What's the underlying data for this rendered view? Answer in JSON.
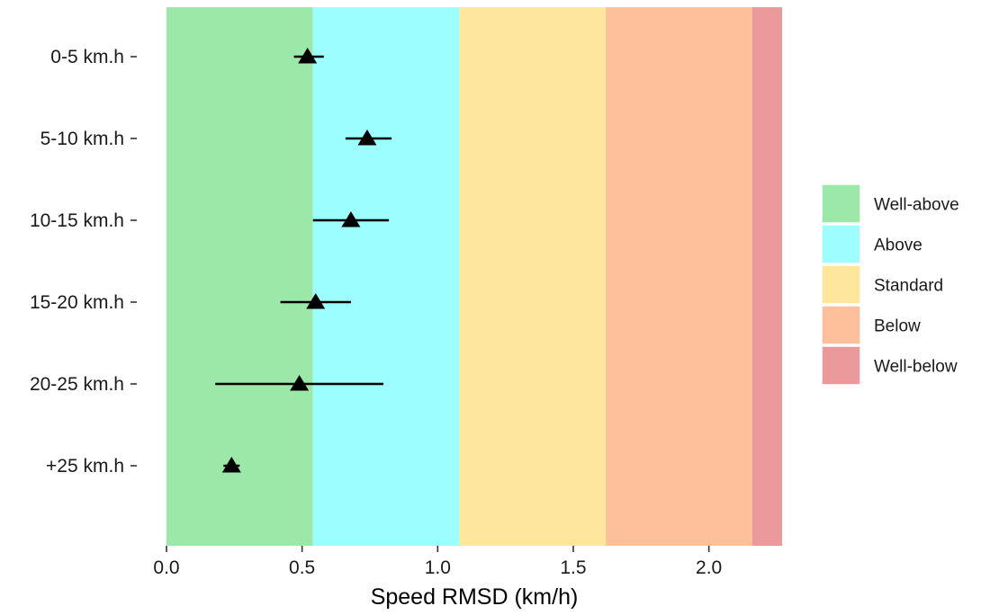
{
  "chart_data": {
    "type": "scatter",
    "xlabel": "Speed RMSD (km/h)",
    "ylabel": "",
    "xlim": [
      0,
      2.27
    ],
    "x_ticks": [
      "0.0",
      "0.5",
      "1.0",
      "1.5",
      "2.0"
    ],
    "x_tick_values": [
      0,
      0.5,
      1.0,
      1.5,
      2.0
    ],
    "categories": [
      "0-5 km.h",
      "5-10 km.h",
      "10-15 km.h",
      "15-20 km.h",
      "20-25 km.h",
      "+25 km.h"
    ],
    "points": [
      {
        "category": "0-5 km.h",
        "value": 0.52,
        "lower": 0.47,
        "upper": 0.58
      },
      {
        "category": "5-10 km.h",
        "value": 0.74,
        "lower": 0.66,
        "upper": 0.83
      },
      {
        "category": "10-15 km.h",
        "value": 0.68,
        "lower": 0.54,
        "upper": 0.82
      },
      {
        "category": "15-20 km.h",
        "value": 0.55,
        "lower": 0.42,
        "upper": 0.68
      },
      {
        "category": "20-25 km.h",
        "value": 0.49,
        "lower": 0.18,
        "upper": 0.8
      },
      {
        "category": "+25 km.h",
        "value": 0.24,
        "lower": 0.21,
        "upper": 0.27
      }
    ],
    "marker": "triangle",
    "bands": [
      {
        "name": "Well-above",
        "from": 0,
        "to": 0.54,
        "color": "#9BE8A9"
      },
      {
        "name": "Above",
        "from": 0.54,
        "to": 1.08,
        "color": "#9CFEFE"
      },
      {
        "name": "Standard",
        "from": 1.08,
        "to": 1.62,
        "color": "#FEE69C"
      },
      {
        "name": "Below",
        "from": 1.62,
        "to": 2.16,
        "color": "#FEC09B"
      },
      {
        "name": "Well-below",
        "from": 2.16,
        "to": 2.27,
        "color": "#EA9A9B"
      }
    ],
    "legend": {
      "position": "right",
      "entries": [
        "Well-above",
        "Above",
        "Standard",
        "Below",
        "Well-below"
      ]
    },
    "grid": false
  }
}
